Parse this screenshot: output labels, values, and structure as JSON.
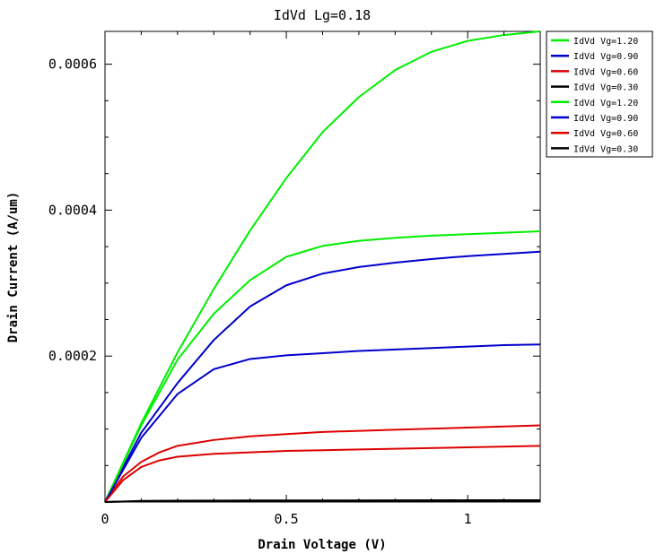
{
  "chart_data": {
    "type": "line",
    "title": "IdVd Lg=0.18",
    "xlabel": "Drain Voltage (V)",
    "ylabel": "Drain Current (A/um)",
    "xlim": [
      0,
      1.2
    ],
    "ylim": [
      0,
      0.000645
    ],
    "xticks": [
      {
        "value": 0,
        "label": "0"
      },
      {
        "value": 0.5,
        "label": "0.5"
      },
      {
        "value": 1,
        "label": "1"
      }
    ],
    "yticks": [
      {
        "value": 0.0002,
        "label": "0.0002"
      },
      {
        "value": 0.0004,
        "label": "0.0004"
      },
      {
        "value": 0.0006,
        "label": "0.0006"
      }
    ],
    "grid": false,
    "legend_position": "right",
    "series": [
      {
        "name": "IdVd Vg=1.20",
        "color": "#00ee00",
        "x": [
          0,
          0.1,
          0.2,
          0.3,
          0.4,
          0.5,
          0.6,
          0.7,
          0.8,
          0.9,
          1.0,
          1.1,
          1.2
        ],
        "y": [
          0,
          0.000108,
          0.000205,
          0.000292,
          0.000372,
          0.000444,
          0.000507,
          0.000555,
          0.000592,
          0.000617,
          0.000632,
          0.00064,
          0.000645
        ]
      },
      {
        "name": "IdVd Vg=0.90",
        "color": "#0000cc",
        "x": [
          0,
          0.1,
          0.2,
          0.3,
          0.4,
          0.5,
          0.6,
          0.7,
          0.8,
          0.9,
          1.0,
          1.1,
          1.2
        ],
        "y": [
          0,
          9.5e-05,
          0.000163,
          0.000222,
          0.000268,
          0.000297,
          0.000313,
          0.000322,
          0.000328,
          0.000333,
          0.000337,
          0.00034,
          0.000343
        ]
      },
      {
        "name": "IdVd Vg=0.60",
        "color": "#dd0000",
        "x": [
          0,
          0.05,
          0.1,
          0.15,
          0.2,
          0.3,
          0.4,
          0.5,
          0.6,
          0.8,
          1.0,
          1.2
        ],
        "y": [
          0,
          3.5e-05,
          5.5e-05,
          6.8e-05,
          7.7e-05,
          8.5e-05,
          9e-05,
          9.3e-05,
          9.6e-05,
          9.9e-05,
          0.000102,
          0.000105
        ]
      },
      {
        "name": "IdVd Vg=0.30",
        "color": "#000000",
        "x": [
          0,
          0.1,
          0.2,
          0.4,
          0.6,
          0.8,
          1.0,
          1.2
        ],
        "y": [
          0,
          1.5e-06,
          1.9e-06,
          2.1e-06,
          2.2e-06,
          2.3e-06,
          2.4e-06,
          2.5e-06
        ]
      },
      {
        "name": "IdVd Vg=1.20",
        "color": "#00ee00",
        "x": [
          0,
          0.1,
          0.2,
          0.3,
          0.4,
          0.5,
          0.6,
          0.7,
          0.8,
          0.9,
          1.0,
          1.1,
          1.2
        ],
        "y": [
          0,
          0.000105,
          0.000195,
          0.000258,
          0.000304,
          0.000336,
          0.000351,
          0.000358,
          0.000362,
          0.000365,
          0.000367,
          0.000369,
          0.000371
        ]
      },
      {
        "name": "IdVd Vg=0.90",
        "color": "#0000cc",
        "x": [
          0,
          0.1,
          0.2,
          0.3,
          0.4,
          0.5,
          0.6,
          0.7,
          0.8,
          0.9,
          1.0,
          1.1,
          1.2
        ],
        "y": [
          0,
          8.8e-05,
          0.000148,
          0.000182,
          0.000196,
          0.000201,
          0.000204,
          0.000207,
          0.000209,
          0.000211,
          0.000213,
          0.000215,
          0.000216
        ]
      },
      {
        "name": "IdVd Vg=0.60",
        "color": "#dd0000",
        "x": [
          0,
          0.05,
          0.1,
          0.15,
          0.2,
          0.3,
          0.4,
          0.5,
          0.6,
          0.8,
          1.0,
          1.2
        ],
        "y": [
          0,
          3e-05,
          4.8e-05,
          5.7e-05,
          6.2e-05,
          6.6e-05,
          6.8e-05,
          7e-05,
          7.1e-05,
          7.3e-05,
          7.5e-05,
          7.7e-05
        ]
      },
      {
        "name": "IdVd Vg=0.30",
        "color": "#000000",
        "x": [
          0,
          0.1,
          0.2,
          0.4,
          0.6,
          0.8,
          1.0,
          1.2
        ],
        "y": [
          0,
          1e-06,
          1.3e-06,
          1.5e-06,
          1.6e-06,
          1.7e-06,
          1.8e-06,
          1.8e-06
        ]
      }
    ]
  }
}
